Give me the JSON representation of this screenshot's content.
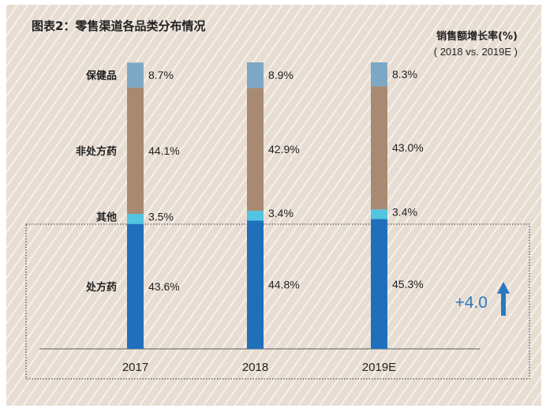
{
  "chart_data": {
    "type": "bar",
    "stacked": true,
    "title": "图表2：零售渠道各品类分布情况",
    "annotation_title": "销售额增长率(%)",
    "annotation_subtitle": "( 2018 vs. 2019E )",
    "categories": [
      "2017",
      "2018",
      "2019E"
    ],
    "series": [
      {
        "name": "处方药",
        "values": [
          43.6,
          44.8,
          45.3
        ],
        "labels": [
          "43.6%",
          "44.8%",
          "45.3%"
        ],
        "color": "#1f6fbb"
      },
      {
        "name": "其他",
        "values": [
          3.5,
          3.4,
          3.4
        ],
        "labels": [
          "3.5%",
          "3.4%",
          "3.4%"
        ],
        "color": "#52c5e0"
      },
      {
        "name": "非处方药",
        "values": [
          44.1,
          42.9,
          43.0
        ],
        "labels": [
          "44.1%",
          "42.9%",
          "43.0%"
        ],
        "color": "#a88a72"
      },
      {
        "name": "保健品",
        "values": [
          8.7,
          8.9,
          8.3
        ],
        "labels": [
          "8.7%",
          "8.9%",
          "8.3%"
        ],
        "color": "#7da8c5"
      }
    ],
    "growth_label": "+4.0",
    "growth_color": "#2a78c0",
    "ylim": [
      0,
      100
    ],
    "grid": false,
    "legend": "left (series names beside first bar)"
  }
}
